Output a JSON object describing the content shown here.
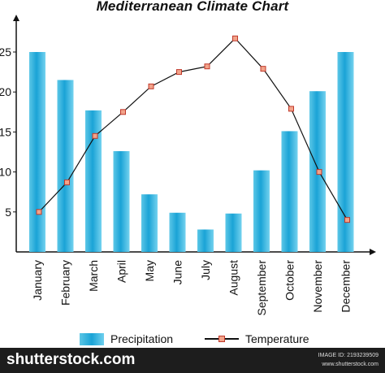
{
  "chart_data": {
    "type": "bar",
    "title": "Mediterranean Climate Chart",
    "categories": [
      "January",
      "February",
      "March",
      "April",
      "May",
      "June",
      "July",
      "August",
      "September",
      "October",
      "November",
      "December"
    ],
    "series": [
      {
        "name": "Precipitation",
        "kind": "bar",
        "color": "#1aa3d6",
        "values": [
          25,
          21.5,
          17.7,
          12.6,
          7.2,
          4.9,
          2.8,
          4.8,
          10.2,
          15.1,
          20.1,
          25
        ]
      },
      {
        "name": "Temperature",
        "kind": "line",
        "color": "#111111",
        "marker_color": "#c0392b",
        "values": [
          5,
          8.7,
          14.5,
          17.5,
          20.7,
          22.5,
          23.2,
          26.7,
          22.9,
          17.9,
          10,
          4
        ]
      }
    ],
    "yticks": [
      5,
      10,
      15,
      20,
      25
    ],
    "ylim": [
      0,
      29
    ],
    "xlabel": "",
    "ylabel": "",
    "grid": false,
    "legend_position": "bottom"
  },
  "legend": {
    "precipitation_label": "Precipitation",
    "temperature_label": "Temperature"
  },
  "footer": {
    "brand": "shutterstock.com",
    "image_id": "IMAGE ID: 2193239509",
    "site": "www.shutterstock.com"
  }
}
